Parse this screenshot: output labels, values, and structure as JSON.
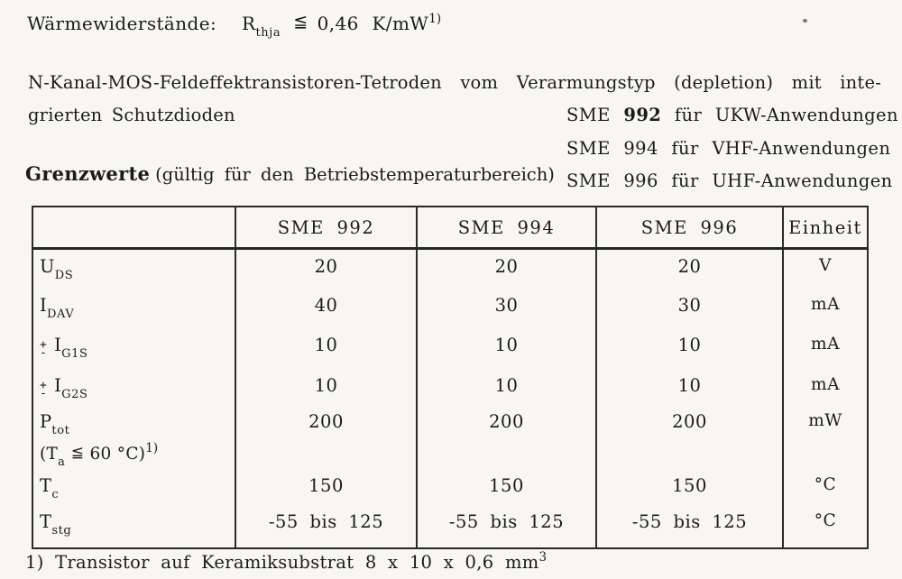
{
  "colors": {
    "paper": "#f7f6f3",
    "ink": "#1b1b1b"
  },
  "thermal": {
    "label": "Wärmewiderstände:",
    "symbol": "R",
    "symbol_sub": "thja",
    "relation": "≦",
    "value": "0,46 K/mW",
    "sup": "1)"
  },
  "intro": {
    "line1": "N-Kanal-MOS-Feldeffektransistoren-Tetroden vom Verarmungstyp (depletion) mit inte-",
    "line2": "grierten Schutzdioden"
  },
  "applications": [
    {
      "prefix": "SME",
      "number": "992",
      "connector": "für",
      "use": "UKW-Anwendungen",
      "bold_number": true
    },
    {
      "prefix": "SME",
      "number": "994",
      "connector": "für",
      "use": "VHF-Anwendungen",
      "bold_number": false
    },
    {
      "prefix": "SME",
      "number": "996",
      "connector": "für",
      "use": "UHF-Anwendungen",
      "bold_number": false
    }
  ],
  "limits_title": {
    "bold": "Grenzwerte",
    "note": "(gültig für den Betriebstemperaturbereich)"
  },
  "table": {
    "headers": [
      "",
      "SME 992",
      "SME 994",
      "SME 996",
      "Einheit"
    ],
    "rows": [
      {
        "param": {
          "base": "U",
          "sub": "DS"
        },
        "values": [
          "20",
          "20",
          "20"
        ],
        "unit": "V"
      },
      {
        "param": {
          "base": "I",
          "sub": "DAV"
        },
        "values": [
          "40",
          "30",
          "30"
        ],
        "unit": "mA"
      },
      {
        "param": {
          "pm": "±",
          "base": "I",
          "sub": "G1S"
        },
        "values": [
          "10",
          "10",
          "10"
        ],
        "unit": "mA"
      },
      {
        "param": {
          "pm": "±",
          "base": "I",
          "sub": "G2S"
        },
        "values": [
          "10",
          "10",
          "10"
        ],
        "unit": "mA"
      },
      {
        "param": {
          "base": "P",
          "sub": "tot",
          "condition": {
            "pre": "(T",
            "sub": "a",
            "rel": "≦",
            "mid": "60",
            "post": "°C)",
            "sup": "1)"
          }
        },
        "values": [
          "200",
          "200",
          "200"
        ],
        "unit": "mW"
      },
      {
        "param": {
          "base": "T",
          "sub": "c"
        },
        "values": [
          "150",
          "150",
          "150"
        ],
        "unit": "°C"
      },
      {
        "param": {
          "base": "T",
          "sub": "stg"
        },
        "values": [
          "-55 bis 125",
          "-55 bis 125",
          "-55 bis 125"
        ],
        "unit": "°C"
      }
    ]
  },
  "footnote": {
    "ref": "1)",
    "text": "Transistor auf Keramiksubstrat 8 x 10 x 0,6 mm",
    "sup": "3"
  }
}
